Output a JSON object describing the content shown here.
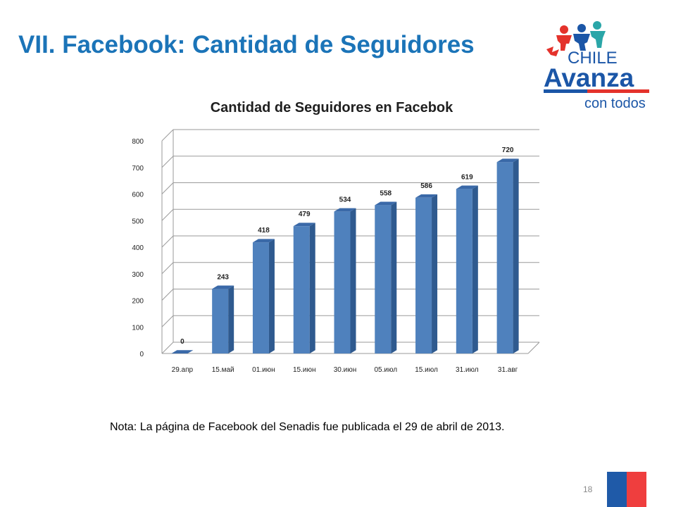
{
  "slide": {
    "title": "VII. Facebook: Cantidad de Seguidores",
    "note": "Nota: La página de Facebook del Senadis fue publicada el 29 de abril de 2013.",
    "slide_number": "18"
  },
  "logo": {
    "line1": "CHILE",
    "line2": "Avanza",
    "line3": "con todos",
    "colors": {
      "blue": "#1b56a7",
      "red": "#e4322b",
      "teal": "#2aa6a8"
    }
  },
  "colors": {
    "title": "#1b74b8",
    "bar_front": "#4f81bd",
    "bar_side": "#2f5a8f",
    "bar_top": "#3a69a8",
    "grid": "#9a9a9a",
    "flag_blue": "#1f5aa8",
    "flag_red": "#ef3e3e"
  },
  "chart_data": {
    "type": "bar",
    "title": "Cantidad de Seguidores en Facebok",
    "categories": [
      "29.апр",
      "15.май",
      "01.июн",
      "15.июн",
      "30.июн",
      "05.июл",
      "15.июл",
      "31.июл",
      "31.авг"
    ],
    "values": [
      0,
      243,
      418,
      479,
      534,
      558,
      586,
      619,
      720
    ],
    "data_labels": [
      "0",
      "243",
      "418",
      "479",
      "534",
      "558",
      "586",
      "619",
      "720"
    ],
    "ylim": [
      0,
      800
    ],
    "yticks": [
      0,
      100,
      200,
      300,
      400,
      500,
      600,
      700,
      800
    ],
    "grid": true,
    "style": "3d-column"
  }
}
